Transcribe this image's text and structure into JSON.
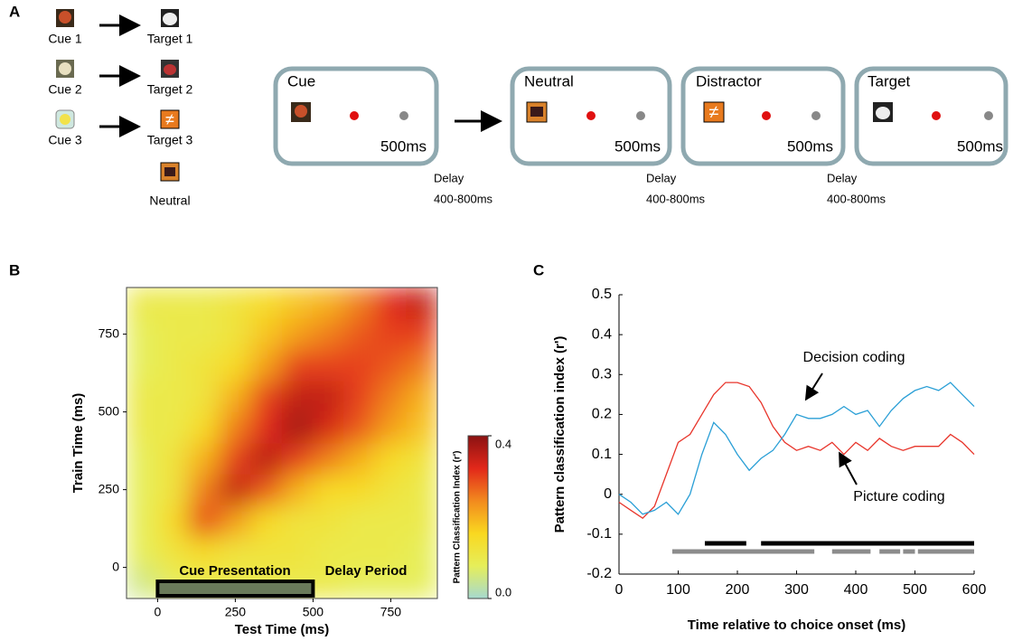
{
  "figure_labels": [
    "A",
    "B",
    "C"
  ],
  "task": {
    "pairs": [
      {
        "cue": "Cue 1",
        "target": "Target 1"
      },
      {
        "cue": "Cue 2",
        "target": "Target 2"
      },
      {
        "cue": "Cue 3",
        "target": "Target 3"
      }
    ],
    "neutral": "Neutral",
    "screens": [
      {
        "title": "Cue",
        "duration": "500ms"
      },
      {
        "title": "Neutral",
        "duration": "500ms"
      },
      {
        "title": "Distractor",
        "duration": "500ms"
      },
      {
        "title": "Target",
        "duration": "500ms"
      }
    ],
    "delays": [
      {
        "label": "Delay",
        "range": "400-800ms"
      },
      {
        "label": "Delay",
        "range": "400-800ms"
      },
      {
        "label": "Delay",
        "range": "400-800ms"
      }
    ]
  },
  "chart_data": [
    {
      "type": "heatmap",
      "xlabel": "Test Time (ms)",
      "ylabel": "Train Time (ms)",
      "xbins": [
        -100,
        0,
        100,
        200,
        300,
        400,
        500,
        600,
        700,
        800,
        900
      ],
      "ybins": [
        -100,
        0,
        100,
        200,
        300,
        400,
        500,
        600,
        700,
        800,
        900
      ],
      "z": [
        [
          0.05,
          0.08,
          0.1,
          0.1,
          0.1,
          0.1,
          0.1,
          0.08,
          0.08,
          0.08
        ],
        [
          0.08,
          0.12,
          0.15,
          0.12,
          0.12,
          0.12,
          0.1,
          0.1,
          0.1,
          0.08
        ],
        [
          0.08,
          0.15,
          0.3,
          0.22,
          0.15,
          0.12,
          0.12,
          0.1,
          0.1,
          0.1
        ],
        [
          0.08,
          0.12,
          0.25,
          0.35,
          0.28,
          0.2,
          0.15,
          0.15,
          0.12,
          0.1
        ],
        [
          0.08,
          0.12,
          0.2,
          0.3,
          0.36,
          0.3,
          0.25,
          0.2,
          0.15,
          0.12
        ],
        [
          0.1,
          0.1,
          0.15,
          0.25,
          0.32,
          0.38,
          0.33,
          0.28,
          0.22,
          0.18
        ],
        [
          0.1,
          0.1,
          0.12,
          0.2,
          0.3,
          0.35,
          0.35,
          0.3,
          0.25,
          0.2
        ],
        [
          0.08,
          0.1,
          0.12,
          0.15,
          0.22,
          0.3,
          0.3,
          0.3,
          0.28,
          0.25
        ],
        [
          0.08,
          0.1,
          0.1,
          0.12,
          0.18,
          0.22,
          0.25,
          0.28,
          0.3,
          0.3
        ],
        [
          0.1,
          0.1,
          0.1,
          0.12,
          0.15,
          0.18,
          0.2,
          0.25,
          0.32,
          0.35
        ]
      ],
      "xlim": [
        -100,
        900
      ],
      "ylim": [
        -100,
        900
      ],
      "xticks": [
        0,
        250,
        500,
        750
      ],
      "yticks": [
        0,
        250,
        500,
        750
      ],
      "colormap": [
        "#a6d9cf",
        "#e6ee5a",
        "#f9d820",
        "#f28a1e",
        "#e2281a",
        "#8b1212"
      ],
      "colorbar": {
        "label": "Pattern Classification Index (r')",
        "lim": [
          0,
          0.4
        ],
        "ticks": [
          {
            "value": 0,
            "label": "0.0"
          },
          {
            "value": 0.4,
            "label": "0.4"
          }
        ]
      },
      "annotations": [
        "Cue Presentation",
        "Delay Period"
      ],
      "cue_bar": [
        0,
        500
      ]
    },
    {
      "type": "line",
      "xlabel": "Time relative to choice onset (ms)",
      "ylabel": "Pattern classification index (r')",
      "x": [
        0,
        20,
        40,
        60,
        80,
        100,
        120,
        140,
        160,
        180,
        200,
        220,
        240,
        260,
        280,
        300,
        320,
        340,
        360,
        380,
        400,
        420,
        440,
        460,
        480,
        500,
        520,
        540,
        560,
        580,
        600
      ],
      "series": [
        {
          "name": "Picture coding",
          "color": "#e8352b",
          "values": [
            -0.02,
            -0.04,
            -0.06,
            -0.03,
            0.05,
            0.13,
            0.15,
            0.2,
            0.25,
            0.28,
            0.28,
            0.27,
            0.23,
            0.17,
            0.13,
            0.11,
            0.12,
            0.11,
            0.13,
            0.1,
            0.13,
            0.11,
            0.14,
            0.12,
            0.11,
            0.12,
            0.12,
            0.12,
            0.15,
            0.13,
            0.1
          ]
        },
        {
          "name": "Decision coding",
          "color": "#2a9fd6",
          "values": [
            0.0,
            -0.02,
            -0.05,
            -0.04,
            -0.02,
            -0.05,
            0.0,
            0.1,
            0.18,
            0.15,
            0.1,
            0.06,
            0.09,
            0.11,
            0.15,
            0.2,
            0.19,
            0.19,
            0.2,
            0.22,
            0.2,
            0.21,
            0.17,
            0.21,
            0.24,
            0.26,
            0.27,
            0.26,
            0.28,
            0.25,
            0.22
          ]
        }
      ],
      "significance": [
        {
          "color": "#000000",
          "intervals": [
            [
              145,
              215
            ],
            [
              240,
              600
            ]
          ]
        },
        {
          "color": "#8c8c8c",
          "intervals": [
            [
              90,
              330
            ],
            [
              360,
              425
            ],
            [
              440,
              475
            ],
            [
              480,
              500
            ],
            [
              505,
              600
            ]
          ]
        }
      ],
      "xlim": [
        0,
        600
      ],
      "ylim": [
        -0.2,
        0.5
      ],
      "xticks": [
        0,
        100,
        200,
        300,
        400,
        500,
        600
      ],
      "yticks": [
        -0.2,
        -0.1,
        0,
        0.1,
        0.2,
        0.3,
        0.4,
        0.5
      ]
    }
  ]
}
